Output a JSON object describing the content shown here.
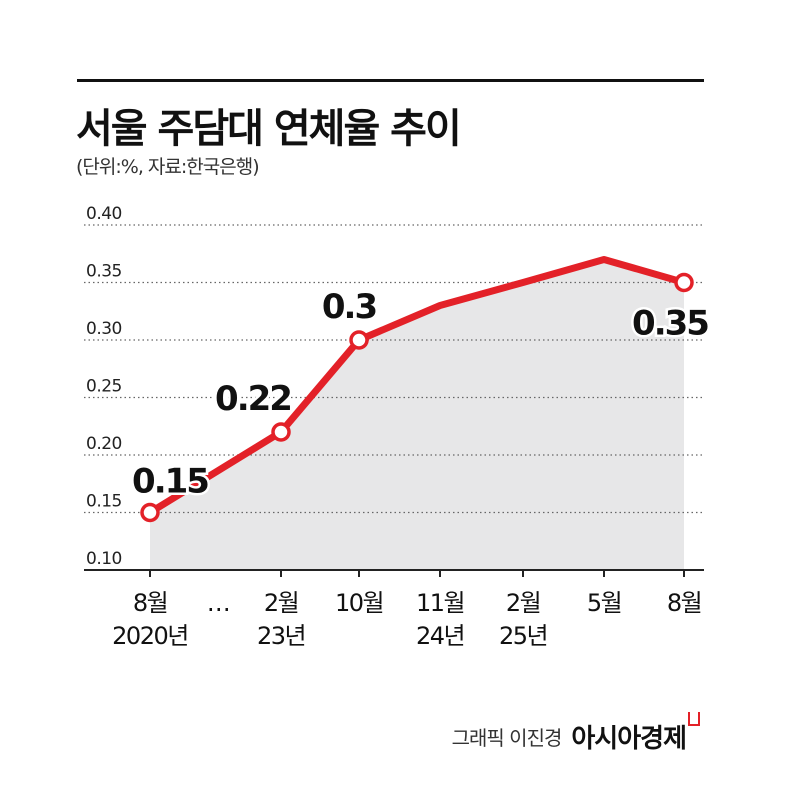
{
  "title": "서울 주담대 연체율 추이",
  "subtitle": "(단위:%, 자료:한국은행)",
  "credit": {
    "author": "그래픽 이진경",
    "brand": "아시아경제"
  },
  "chart_data": {
    "type": "area",
    "colors": {
      "line": "#e32128",
      "fill": "#e7e7e8",
      "grid": "#666666"
    },
    "ylim": [
      0.1,
      0.4
    ],
    "y_ticks": [
      "0.10",
      "0.15",
      "0.20",
      "0.25",
      "0.30",
      "0.35",
      "0.40"
    ],
    "grid": "dotted horizontal",
    "x_labels": [
      {
        "line1": "8월",
        "line2": "2020년"
      },
      {
        "line1": "…",
        "line2": ""
      },
      {
        "line1": "2월",
        "line2": "23년"
      },
      {
        "line1": "10월",
        "line2": ""
      },
      {
        "line1": "11월",
        "line2": "24년"
      },
      {
        "line1": "2월",
        "line2": "25년"
      },
      {
        "line1": "5월",
        "line2": ""
      },
      {
        "line1": "8월",
        "line2": ""
      }
    ],
    "points": [
      {
        "x_label": "8월 2020년",
        "value": 0.15,
        "label": "0.15",
        "marker": true
      },
      {
        "x_label": "2월 23년",
        "value": 0.22,
        "label": "0.22",
        "marker": true
      },
      {
        "x_label": "10월",
        "value": 0.3,
        "label": "0.3",
        "marker": true
      },
      {
        "x_label": "11월 24년",
        "value": 0.33,
        "label": "",
        "marker": false
      },
      {
        "x_label": "2월 25년",
        "value": 0.35,
        "label": "",
        "marker": false
      },
      {
        "x_label": "5월",
        "value": 0.37,
        "label": "",
        "marker": false
      },
      {
        "x_label": "8월",
        "value": 0.35,
        "label": "0.35",
        "marker": true
      }
    ]
  }
}
